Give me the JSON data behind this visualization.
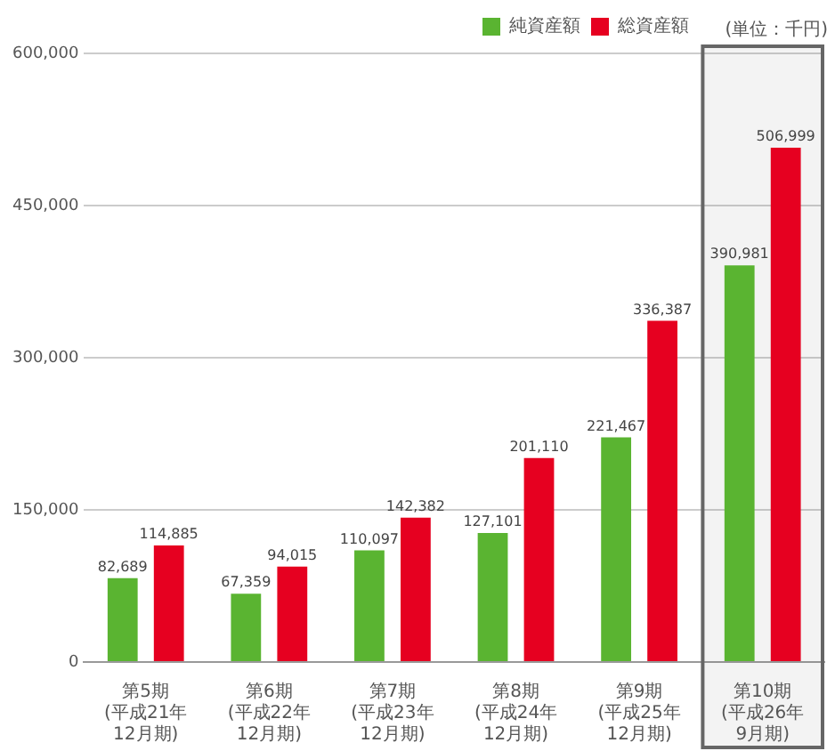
{
  "chart_data": {
    "type": "bar",
    "categories": [
      "第5期\n(平成21年12月期)",
      "第6期\n(平成22年12月期)",
      "第7期\n(平成23年12月期)",
      "第8期\n(平成24年12月期)",
      "第9期\n(平成25年12月期)",
      "第10期\n(平成26年9月期)"
    ],
    "series": [
      {
        "name": "純資産額",
        "color": "#5ab431",
        "values": [
          82689,
          67359,
          110097,
          127101,
          221467,
          390981
        ],
        "value_labels": [
          "82,689",
          "67,359",
          "110,097",
          "127,101",
          "221,467",
          "390,981"
        ]
      },
      {
        "name": "総資産額",
        "color": "#e60020",
        "values": [
          114885,
          94015,
          142382,
          201110,
          336387,
          506999
        ],
        "value_labels": [
          "114,885",
          "94,015",
          "142,382",
          "201,110",
          "336,387",
          "506,999"
        ]
      }
    ],
    "ylim": [
      0,
      600000
    ],
    "yticks": [
      0,
      {
        "value": 150000,
        "label": "150,000"
      },
      {
        "value": 300000,
        "label": "300,000"
      },
      {
        "value": 450000,
        "label": "450,000"
      },
      {
        "value": 600000,
        "label": "600,000"
      }
    ],
    "grid": "y",
    "legend": "top right",
    "annotations": [
      "(単位：千円)"
    ],
    "bands": [
      {
        "axis": "x",
        "from": "第10期\n(平成26年9月期)",
        "to": "第10期\n(平成26年9月期)",
        "color": "#666666"
      }
    ]
  }
}
